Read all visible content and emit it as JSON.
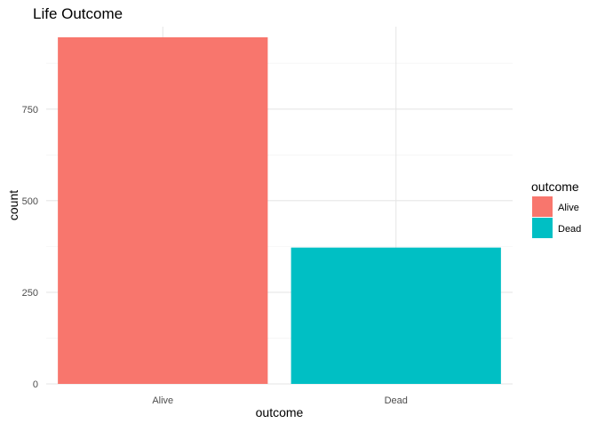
{
  "chart_data": {
    "type": "bar",
    "title": "Life Outcome",
    "xlabel": "outcome",
    "ylabel": "count",
    "categories": [
      "Alive",
      "Dead"
    ],
    "values": [
      946,
      372
    ],
    "colors": [
      "#F8766D",
      "#00BFC4"
    ],
    "ylim": [
      0,
      975
    ],
    "yticks": [
      0,
      250,
      500,
      750
    ],
    "grid": true,
    "legend": {
      "title": "outcome",
      "position": "right",
      "entries": [
        {
          "label": "Alive",
          "color": "#F8766D"
        },
        {
          "label": "Dead",
          "color": "#00BFC4"
        }
      ]
    }
  }
}
